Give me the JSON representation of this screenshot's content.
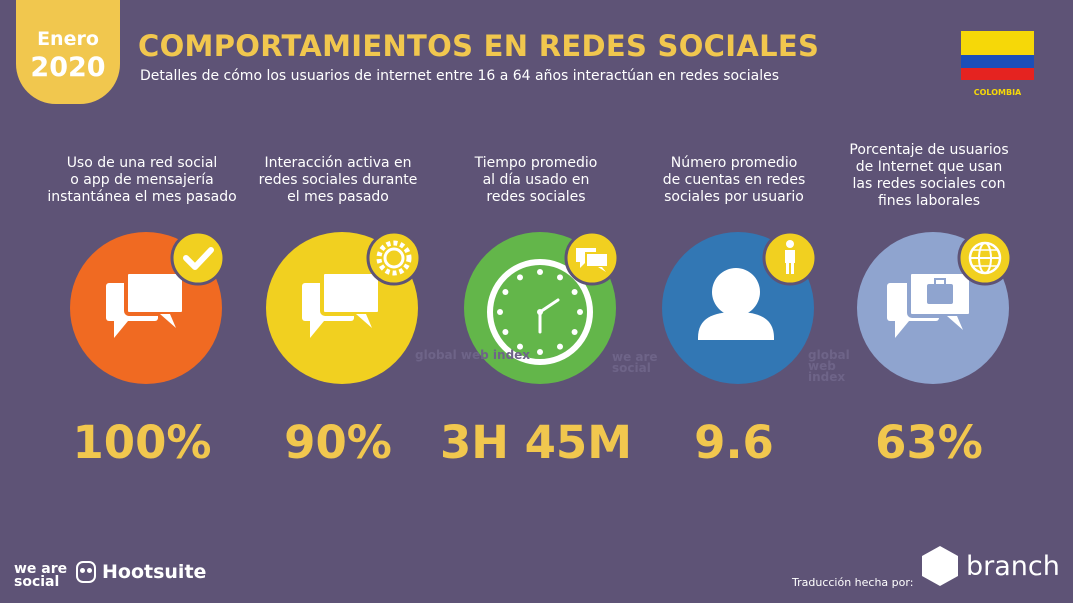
{
  "badge": {
    "month": "Enero",
    "year": "2020"
  },
  "header": {
    "title": "COMPORTAMIENTOS EN REDES SOCIALES",
    "subtitle": "Detalles de cómo los usuarios de internet entre 16 a 64 años interactúan en redes sociales"
  },
  "country": {
    "name": "COLOMBIA",
    "flag_colors": [
      "#f6d808",
      "#1b4fb8",
      "#e52320"
    ]
  },
  "stats": [
    {
      "label": "Uso de una red social o app de mensajería instantánea el mes pasado",
      "value": "100%",
      "color": "#f06a22",
      "badge_icon": "check-icon",
      "main_icon": "chat-bubbles-icon"
    },
    {
      "label": "Interacción activa en redes sociales durante el mes pasado",
      "value": "90%",
      "color": "#f1d020",
      "badge_icon": "gear-badge-icon",
      "main_icon": "chat-bubbles-icon"
    },
    {
      "label": "Tiempo promedio al día usado en redes sociales",
      "value": "3H 45M",
      "color": "#63b64a",
      "badge_icon": "chat-icon",
      "main_icon": "clock-icon"
    },
    {
      "label": "Número promedio de cuentas en redes sociales por usuario",
      "value": "9.6",
      "color": "#3277b4",
      "badge_icon": "person-icon",
      "main_icon": "user-icon"
    },
    {
      "label": "Porcentaje de usuarios de Internet que usan las redes sociales con fines laborales",
      "value": "63%",
      "color": "#8fa4cf",
      "badge_icon": "globe-icon",
      "main_icon": "briefcase-chat-icon"
    }
  ],
  "label_lines": [
    [
      "Uso de una red social",
      "o app de mensajería",
      "instantánea el mes pasado"
    ],
    [
      "Interacción activa en",
      "redes sociales durante",
      "el mes pasado"
    ],
    [
      "Tiempo promedio",
      "al día usado en",
      "redes sociales"
    ],
    [
      "Número promedio",
      "de cuentas en redes",
      "sociales por usuario"
    ],
    [
      "Porcentaje de usuarios",
      "de Internet que usan",
      "las redes sociales con",
      "fines laborales"
    ]
  ],
  "watermarks": [
    "global web index",
    "we are social",
    "global web index"
  ],
  "footer": {
    "we_are_social": "we are social",
    "hootsuite": "Hootsuite",
    "credit": "Traducción hecha por:",
    "branch": "branch"
  }
}
